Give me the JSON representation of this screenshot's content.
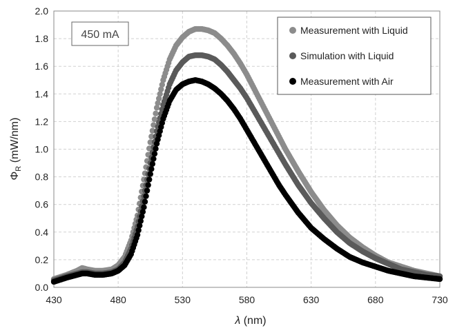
{
  "chart_data": {
    "type": "scatter",
    "xlabel": "λ (nm)",
    "ylabel": "ΦR (mW/nm)",
    "ylabel_main": "Φ",
    "ylabel_sub": "R",
    "ylabel_unit": " (mW/nm)",
    "xlabel_symbol": "λ",
    "xlabel_unit": " (nm)",
    "xlim": [
      430,
      730
    ],
    "ylim": [
      0,
      2.0
    ],
    "xticks": [
      "430",
      "480",
      "530",
      "580",
      "630",
      "680",
      "730"
    ],
    "yticks": [
      "0.0",
      "0.2",
      "0.4",
      "0.6",
      "0.8",
      "1.0",
      "1.2",
      "1.4",
      "1.6",
      "1.8",
      "2.0"
    ],
    "grid": true,
    "legend_position": "top-right",
    "annotation": "450 mA",
    "colors": {
      "measurement_liquid": "#8c8c8c",
      "simulation_liquid": "#5a5a5a",
      "measurement_air": "#000000",
      "grid": "#d0d0d0"
    },
    "series": [
      {
        "name": "Measurement with Liquid",
        "x": [
          430,
          440,
          448,
          452,
          456,
          462,
          468,
          475,
          480,
          485,
          490,
          495,
          500,
          505,
          510,
          515,
          520,
          525,
          530,
          535,
          540,
          545,
          550,
          555,
          560,
          565,
          570,
          575,
          580,
          585,
          590,
          595,
          600,
          605,
          610,
          620,
          630,
          640,
          650,
          660,
          670,
          680,
          690,
          700,
          710,
          720,
          730
        ],
        "values": [
          0.06,
          0.09,
          0.12,
          0.14,
          0.13,
          0.12,
          0.12,
          0.13,
          0.16,
          0.22,
          0.34,
          0.52,
          0.78,
          1.05,
          1.3,
          1.5,
          1.65,
          1.75,
          1.81,
          1.85,
          1.87,
          1.87,
          1.86,
          1.84,
          1.8,
          1.75,
          1.69,
          1.62,
          1.54,
          1.45,
          1.36,
          1.27,
          1.18,
          1.09,
          1.0,
          0.84,
          0.69,
          0.56,
          0.45,
          0.36,
          0.29,
          0.23,
          0.18,
          0.15,
          0.12,
          0.1,
          0.08
        ]
      },
      {
        "name": "Simulation with Liquid",
        "x": [
          430,
          440,
          448,
          452,
          456,
          462,
          468,
          475,
          480,
          485,
          490,
          495,
          500,
          505,
          510,
          515,
          520,
          525,
          530,
          535,
          540,
          545,
          550,
          555,
          560,
          565,
          570,
          575,
          580,
          585,
          590,
          595,
          600,
          605,
          610,
          620,
          630,
          640,
          650,
          660,
          670,
          680,
          690,
          700,
          710,
          720,
          730
        ],
        "values": [
          0.05,
          0.08,
          0.1,
          0.11,
          0.11,
          0.1,
          0.1,
          0.11,
          0.13,
          0.18,
          0.28,
          0.44,
          0.66,
          0.9,
          1.13,
          1.32,
          1.47,
          1.57,
          1.63,
          1.67,
          1.68,
          1.68,
          1.67,
          1.65,
          1.61,
          1.56,
          1.5,
          1.44,
          1.37,
          1.29,
          1.21,
          1.13,
          1.05,
          0.97,
          0.89,
          0.74,
          0.61,
          0.5,
          0.4,
          0.32,
          0.26,
          0.21,
          0.17,
          0.13,
          0.11,
          0.09,
          0.08
        ]
      },
      {
        "name": "Measurement with Air",
        "x": [
          430,
          440,
          448,
          452,
          456,
          462,
          468,
          475,
          480,
          485,
          490,
          495,
          500,
          505,
          510,
          515,
          520,
          525,
          530,
          535,
          540,
          545,
          550,
          555,
          560,
          565,
          570,
          575,
          580,
          585,
          590,
          595,
          600,
          605,
          610,
          620,
          630,
          640,
          650,
          660,
          670,
          680,
          690,
          700,
          710,
          720,
          730
        ],
        "values": [
          0.04,
          0.07,
          0.09,
          0.1,
          0.1,
          0.09,
          0.09,
          0.1,
          0.12,
          0.16,
          0.24,
          0.38,
          0.58,
          0.82,
          1.04,
          1.22,
          1.35,
          1.43,
          1.47,
          1.49,
          1.5,
          1.49,
          1.47,
          1.44,
          1.4,
          1.35,
          1.29,
          1.22,
          1.14,
          1.06,
          0.98,
          0.9,
          0.82,
          0.74,
          0.67,
          0.54,
          0.43,
          0.35,
          0.28,
          0.22,
          0.18,
          0.15,
          0.12,
          0.1,
          0.08,
          0.07,
          0.06
        ]
      }
    ]
  }
}
